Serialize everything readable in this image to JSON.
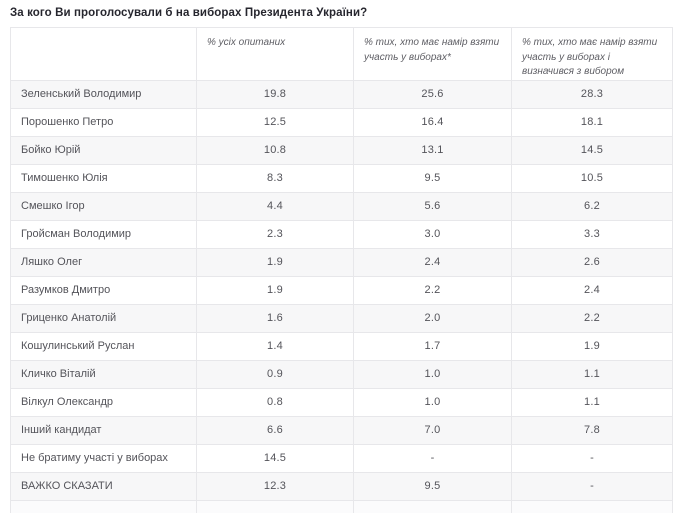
{
  "page": {
    "title": "За кого Ви проголосували б на виборах Президента України?"
  },
  "table": {
    "columns": {
      "candidate": "",
      "all_respondents": "% усіх опитаних",
      "intend_to_vote": "% тих, хто має намір взяти участь у виборах*",
      "intend_and_decided": "% тих, хто має намір взяти участь у виборах і визначився з вибором"
    },
    "rows": [
      {
        "name": "Зеленський Володимир",
        "all": "19.8",
        "intend": "25.6",
        "decided": "28.3"
      },
      {
        "name": "Порошенко Петро",
        "all": "12.5",
        "intend": "16.4",
        "decided": "18.1"
      },
      {
        "name": "Бойко Юрій",
        "all": "10.8",
        "intend": "13.1",
        "decided": "14.5"
      },
      {
        "name": "Тимошенко Юлія",
        "all": "8.3",
        "intend": "9.5",
        "decided": "10.5"
      },
      {
        "name": "Смешко Ігор",
        "all": "4.4",
        "intend": "5.6",
        "decided": "6.2"
      },
      {
        "name": "Гройсман Володимир",
        "all": "2.3",
        "intend": "3.0",
        "decided": "3.3"
      },
      {
        "name": "Ляшко Олег",
        "all": "1.9",
        "intend": "2.4",
        "decided": "2.6"
      },
      {
        "name": "Разумков Дмитро",
        "all": "1.9",
        "intend": "2.2",
        "decided": "2.4"
      },
      {
        "name": "Гриценко Анатолій",
        "all": "1.6",
        "intend": "2.0",
        "decided": "2.2"
      },
      {
        "name": "Кошулинський Руслан",
        "all": "1.4",
        "intend": "1.7",
        "decided": "1.9"
      },
      {
        "name": "Кличко Віталій",
        "all": "0.9",
        "intend": "1.0",
        "decided": "1.1"
      },
      {
        "name": "Вілкул Олександр",
        "all": "0.8",
        "intend": "1.0",
        "decided": "1.1"
      },
      {
        "name": "Інший кандидат",
        "all": "6.6",
        "intend": "7.0",
        "decided": "7.8"
      },
      {
        "name": "Не братиму участі у виборах",
        "all": "14.5",
        "intend": "-",
        "decided": "-"
      },
      {
        "name": "ВАЖКО СКАЗАТИ",
        "all": "12.3",
        "intend": "9.5",
        "decided": "-"
      }
    ]
  },
  "chart_data": {
    "type": "table",
    "title": "За кого Ви проголосували б на виборах Президента України?",
    "categories": [
      "Зеленський Володимир",
      "Порошенко Петро",
      "Бойко Юрій",
      "Тимошенко Юлія",
      "Смешко Ігор",
      "Гройсман Володимир",
      "Ляшко Олег",
      "Разумков Дмитро",
      "Гриценко Анатолій",
      "Кошулинський Руслан",
      "Кличко Віталій",
      "Вілкул Олександр",
      "Інший кандидат",
      "Не братиму участі у виборах",
      "ВАЖКО СКАЗАТИ"
    ],
    "series": [
      {
        "name": "% усіх опитаних",
        "values": [
          19.8,
          12.5,
          10.8,
          8.3,
          4.4,
          2.3,
          1.9,
          1.9,
          1.6,
          1.4,
          0.9,
          0.8,
          6.6,
          14.5,
          12.3
        ]
      },
      {
        "name": "% тих, хто має намір взяти участь у виборах*",
        "values": [
          25.6,
          16.4,
          13.1,
          9.5,
          5.6,
          3.0,
          2.4,
          2.2,
          2.0,
          1.7,
          1.0,
          1.0,
          7.0,
          null,
          9.5
        ]
      },
      {
        "name": "% тих, хто має намір взяти участь у виборах і визначився з вибором",
        "values": [
          28.3,
          18.1,
          14.5,
          10.5,
          6.2,
          3.3,
          2.6,
          2.4,
          2.2,
          1.9,
          1.1,
          1.1,
          7.8,
          null,
          null
        ]
      }
    ],
    "layout": {
      "header_style": "italic",
      "alternating_rows": true,
      "values_unit": "%"
    }
  },
  "colors": {
    "row_alt_bg": "#f7f7f8",
    "border": "#e7e7ea",
    "title_text": "#26262e",
    "cell_text": "#54545a",
    "header_text": "#5e5e64"
  }
}
